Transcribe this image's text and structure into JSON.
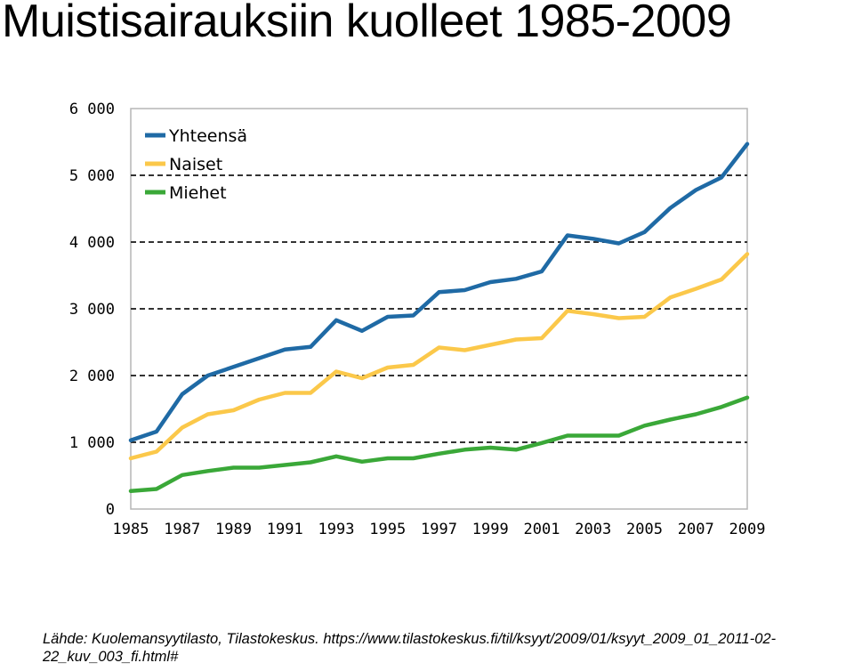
{
  "title": "Muistisairauksiin kuolleet 1985-2009",
  "source": "Lähde: Kuolemansyytilasto, Tilastokeskus. https://www.tilastokeskus.fi/til/ksyyt/2009/01/ksyyt_2009_01_2011-02-22_kuv_003_fi.html#",
  "chart_data": {
    "type": "line",
    "x": [
      1985,
      1986,
      1987,
      1988,
      1989,
      1990,
      1991,
      1992,
      1993,
      1994,
      1995,
      1996,
      1997,
      1998,
      1999,
      2000,
      2001,
      2002,
      2003,
      2004,
      2005,
      2006,
      2007,
      2008,
      2009
    ],
    "xticks": [
      "1985",
      "1987",
      "1989",
      "1991",
      "1993",
      "1995",
      "1997",
      "1999",
      "2001",
      "2003",
      "2005",
      "2007",
      "2009"
    ],
    "xlim": [
      1985,
      2009
    ],
    "ylim": [
      0,
      6000
    ],
    "yticks": [
      {
        "value": 0,
        "label": "0"
      },
      {
        "value": 1000,
        "label": "1 000"
      },
      {
        "value": 2000,
        "label": "2 000"
      },
      {
        "value": 3000,
        "label": "3 000"
      },
      {
        "value": 4000,
        "label": "4 000"
      },
      {
        "value": 5000,
        "label": "5 000"
      },
      {
        "value": 6000,
        "label": "6 000"
      }
    ],
    "grid": "horizontal-dashed",
    "legend_position": "top-left",
    "series": [
      {
        "name": "Yhteensä",
        "color": "#1f6aa5",
        "values": [
          1030,
          1160,
          1720,
          2000,
          2130,
          2260,
          2390,
          2430,
          2830,
          2670,
          2880,
          2900,
          3250,
          3280,
          3400,
          3450,
          3560,
          4100,
          4050,
          3980,
          4150,
          4510,
          4780,
          4970,
          5470
        ]
      },
      {
        "name": "Naiset",
        "color": "#fbc84a",
        "values": [
          760,
          860,
          1220,
          1420,
          1480,
          1640,
          1740,
          1740,
          2060,
          1960,
          2120,
          2160,
          2420,
          2380,
          2460,
          2540,
          2560,
          2970,
          2920,
          2860,
          2880,
          3170,
          3300,
          3440,
          3820
        ]
      },
      {
        "name": "Miehet",
        "color": "#3aa838",
        "values": [
          270,
          300,
          510,
          570,
          620,
          620,
          660,
          700,
          790,
          710,
          760,
          760,
          830,
          890,
          920,
          890,
          990,
          1100,
          1100,
          1100,
          1250,
          1340,
          1420,
          1530,
          1670
        ]
      }
    ]
  }
}
